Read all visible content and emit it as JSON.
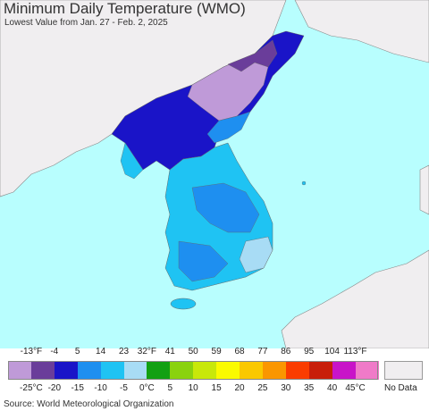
{
  "title": "Minimum Daily Temperature (WMO)",
  "subtitle": "Lowest Value from Jan. 27 - Feb. 2, 2025",
  "source": "Source: World Meteorological Organization",
  "colors": {
    "ocean": "#b8fefe",
    "land_nodata": "#f0eef0",
    "border": "#888888"
  },
  "legend": {
    "fahrenheit_ticks": [
      "-13°F",
      "-4",
      "5",
      "14",
      "23",
      "32°F",
      "41",
      "50",
      "59",
      "68",
      "77",
      "86",
      "95",
      "104",
      "113°F"
    ],
    "celsius_ticks": [
      "-25°C",
      "-20",
      "-15",
      "-10",
      "-5",
      "0°C",
      "5",
      "10",
      "15",
      "20",
      "25",
      "30",
      "35",
      "40",
      "45°C"
    ],
    "swatches": [
      "#bf9ad8",
      "#6a3d9a",
      "#1a14c8",
      "#1e8ff0",
      "#1fc3f3",
      "#a8dcf5",
      "#12a012",
      "#8ad20e",
      "#c8e80a",
      "#fafa00",
      "#fac800",
      "#fa9600",
      "#fa3c00",
      "#c81e0a",
      "#c814c8",
      "#f07ac8"
    ],
    "nodata_label": "No Data"
  }
}
